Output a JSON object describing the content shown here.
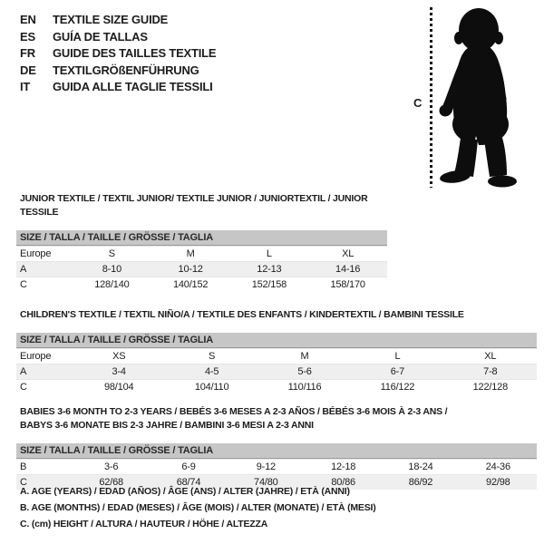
{
  "colors": {
    "text": "#1c1c1c",
    "size_bar": "#c6c6c6",
    "shaded_row": "#efefef",
    "silhouette": "#0d0d0d"
  },
  "languages": [
    {
      "code": "EN",
      "label": "TEXTILE SIZE GUIDE"
    },
    {
      "code": "ES",
      "label": "GUÍA DE TALLAS"
    },
    {
      "code": "FR",
      "label": "GUIDE DES TAILLES TEXTILE"
    },
    {
      "code": "DE",
      "label": "TEXTILGRÖßENFÜHRUNG"
    },
    {
      "code": "IT",
      "label": "GUIDA ALLE TAGLIE TESSILI"
    }
  ],
  "figure": {
    "measure_label": "C"
  },
  "tables": [
    {
      "title_lines": [
        "JUNIOR TEXTILE / TEXTIL JUNIOR/ TEXTILE JUNIOR / JUNIORTEXTIL / JUNIOR TESSILE"
      ],
      "size_header": "SIZE / TALLA / TAILLE / GRÖSSE / TAGLIA",
      "rows": [
        {
          "label": "Europe",
          "values": [
            "S",
            "M",
            "L",
            "XL"
          ]
        },
        {
          "label": "A",
          "values": [
            "8-10",
            "10-12",
            "12-13",
            "14-16"
          ]
        },
        {
          "label": "C",
          "values": [
            "128/140",
            "140/152",
            "152/158",
            "158/170"
          ]
        }
      ]
    },
    {
      "title_lines": [
        "CHILDREN'S TEXTILE / TEXTIL NIÑO/A / TEXTILE DES ENFANTS / KINDERTEXTIL / BAMBINI TESSILE"
      ],
      "size_header": "SIZE / TALLA / TAILLE / GRÖSSE / TAGLIA",
      "rows": [
        {
          "label": "Europe",
          "values": [
            "XS",
            "S",
            "M",
            "L",
            "XL"
          ]
        },
        {
          "label": "A",
          "values": [
            "3-4",
            "4-5",
            "5-6",
            "6-7",
            "7-8"
          ]
        },
        {
          "label": "C",
          "values": [
            "98/104",
            "104/110",
            "110/116",
            "116/122",
            "122/128"
          ]
        }
      ]
    },
    {
      "title_lines": [
        "BABIES 3-6 MONTH TO 2-3 YEARS / BEBÉS 3-6 MESES A 2-3 AÑOS / BÉBÉS 3-6 MOIS À 2-3 ANS /",
        "BABYS 3-6 MONATE BIS 2-3 JAHRE / BAMBINI 3-6 MESI A 2-3 ANNI"
      ],
      "size_header": "SIZE / TALLA / TAILLE / GRÖSSE / TAGLIA",
      "rows": [
        {
          "label": "B",
          "values": [
            "3-6",
            "6-9",
            "9-12",
            "12-18",
            "18-24",
            "24-36"
          ]
        },
        {
          "label": "C",
          "values": [
            "62/68",
            "68/74",
            "74/80",
            "80/86",
            "86/92",
            "92/98"
          ]
        }
      ]
    }
  ],
  "footnotes": [
    "A. AGE (YEARS) / EDAD (AÑOS) / ÂGE (ANS) / ALTER (JAHRE) / ETÀ (ANNI)",
    "B. AGE (MONTHS) / EDAD (MESES) / ÂGE (MOIS) / ALTER (MONATE) / ETÀ (MESI)",
    "C. (cm) HEIGHT / ALTURA / HAUTEUR / HÖHE / ALTEZZA"
  ]
}
